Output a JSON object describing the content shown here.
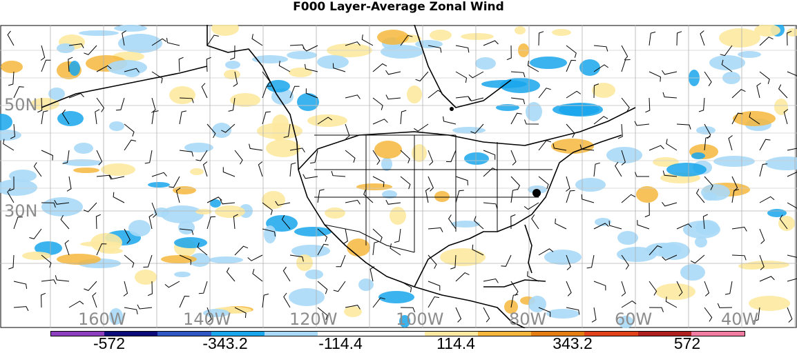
{
  "title": "F000 Layer-Average Zonal Wind",
  "map": {
    "lat_labels": [
      "50N",
      "30N"
    ],
    "lon_labels": [
      "160W",
      "140W",
      "120W",
      "100W",
      "80W",
      "60W",
      "40W"
    ],
    "marker": "station-dot"
  },
  "colorbar": {
    "colors": [
      "#8e3fbf",
      "#0b0b7a",
      "#3056c4",
      "#19a6ec",
      "#a9d9f7",
      "#ffffff",
      "#ffffff",
      "#fde9a1",
      "#f6b73c",
      "#e57e12",
      "#e1421a",
      "#b01f1f",
      "#f27ca2"
    ],
    "labels": [
      "-572",
      "-343.2",
      "-114.4",
      "114.4",
      "343.2",
      "572"
    ]
  }
}
